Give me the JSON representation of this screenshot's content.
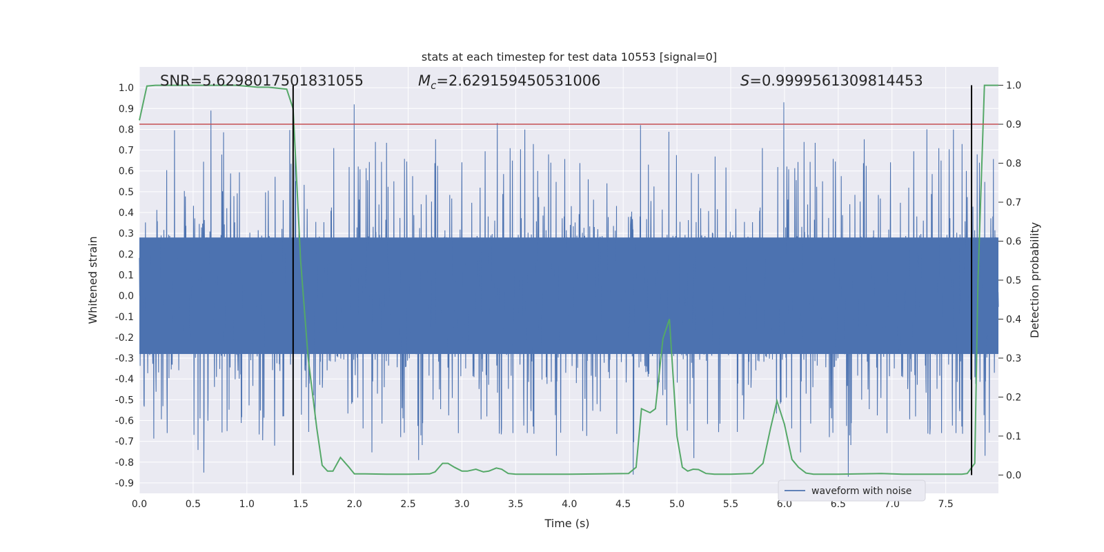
{
  "chart_data": {
    "type": "line",
    "title": "stats at each timestep for test data 10553 [signal=0]",
    "xlabel": "Time (s)",
    "ylabel": "Whitened strain",
    "y2label": "Detection probability",
    "xlim": [
      0.0,
      7.99
    ],
    "ylim": [
      -0.95,
      1.1
    ],
    "y2lim": [
      -0.047,
      1.047
    ],
    "x_ticks": [
      0.0,
      0.5,
      1.0,
      1.5,
      2.0,
      2.5,
      3.0,
      3.5,
      4.0,
      4.5,
      5.0,
      5.5,
      6.0,
      6.5,
      7.0,
      7.5
    ],
    "x_tick_labels": [
      "0.0",
      "0.5",
      "1.0",
      "1.5",
      "2.0",
      "2.5",
      "3.0",
      "3.5",
      "4.0",
      "4.5",
      "5.0",
      "5.5",
      "6.0",
      "6.5",
      "7.0",
      "7.5"
    ],
    "y_ticks": [
      1.0,
      0.9,
      0.8,
      0.7,
      0.6,
      0.5,
      0.4,
      0.3,
      0.2,
      0.1,
      0.0,
      -0.1,
      -0.2,
      -0.3,
      -0.4,
      -0.5,
      -0.6,
      -0.7,
      -0.8,
      -0.9
    ],
    "y_tick_labels": [
      "1.0",
      "0.9",
      "0.8",
      "0.7",
      "0.6",
      "0.5",
      "0.4",
      "0.3",
      "0.2",
      "0.1",
      "0.0",
      "-0.1",
      "-0.2",
      "-0.3",
      "-0.4",
      "-0.5",
      "-0.6",
      "-0.7",
      "-0.8",
      "-0.9"
    ],
    "y2_ticks": [
      1.0,
      0.9,
      0.8,
      0.7,
      0.6,
      0.5,
      0.4,
      0.3,
      0.2,
      0.1,
      0.0
    ],
    "y2_tick_labels": [
      "1.0",
      "0.9",
      "0.8",
      "0.7",
      "0.6",
      "0.5",
      "0.4",
      "0.3",
      "0.2",
      "0.1",
      "0.0"
    ],
    "grid": true,
    "legend_placement": "lower-right",
    "annotations": {
      "snr": "SNR=5.6298017501831055",
      "mc_symbol": "M",
      "mc_subscript": "c",
      "mc_value": "=2.629159450531006",
      "s_symbol": "S",
      "s_value": "=0.9999561309814453"
    },
    "threshold_y2": 0.9,
    "vlines_x": [
      1.43,
      7.74
    ],
    "waveform_series": {
      "name": "waveform with noise",
      "color": "#4c72b0",
      "core_amplitude": 0.28,
      "spike_max": [
        0.89,
        0.92,
        0.83,
        0.82,
        0.93,
        0.8
      ],
      "spike_min": [
        -0.85,
        -0.79,
        -0.86,
        -0.87
      ]
    },
    "probability_series": {
      "color": "#55a868",
      "x": [
        0.0,
        0.07,
        0.15,
        0.3,
        0.5,
        0.7,
        0.9,
        1.1,
        1.2,
        1.37,
        1.43,
        1.5,
        1.57,
        1.65,
        1.7,
        1.75,
        1.8,
        1.87,
        1.95,
        2.0,
        2.1,
        2.3,
        2.5,
        2.7,
        2.75,
        2.82,
        2.87,
        2.93,
        3.0,
        3.05,
        3.13,
        3.2,
        3.25,
        3.32,
        3.37,
        3.43,
        3.5,
        3.7,
        4.0,
        4.3,
        4.55,
        4.62,
        4.67,
        4.75,
        4.8,
        4.87,
        4.93,
        5.0,
        5.05,
        5.1,
        5.15,
        5.2,
        5.27,
        5.35,
        5.5,
        5.7,
        5.8,
        5.87,
        5.93,
        6.0,
        6.07,
        6.13,
        6.2,
        6.27,
        6.35,
        6.5,
        6.7,
        6.9,
        7.1,
        7.3,
        7.5,
        7.65,
        7.7,
        7.77,
        7.8,
        7.86,
        7.99
      ],
      "y": [
        0.91,
        0.998,
        1.0,
        1.0,
        1.0,
        1.0,
        1.0,
        0.995,
        0.995,
        0.99,
        0.94,
        0.55,
        0.3,
        0.12,
        0.025,
        0.01,
        0.01,
        0.045,
        0.02,
        0.003,
        0.003,
        0.002,
        0.002,
        0.003,
        0.008,
        0.03,
        0.03,
        0.02,
        0.01,
        0.01,
        0.015,
        0.008,
        0.01,
        0.018,
        0.015,
        0.004,
        0.002,
        0.002,
        0.002,
        0.003,
        0.004,
        0.02,
        0.17,
        0.16,
        0.17,
        0.35,
        0.4,
        0.1,
        0.02,
        0.01,
        0.015,
        0.014,
        0.004,
        0.002,
        0.002,
        0.004,
        0.03,
        0.12,
        0.19,
        0.13,
        0.04,
        0.02,
        0.005,
        0.002,
        0.002,
        0.002,
        0.003,
        0.004,
        0.002,
        0.002,
        0.002,
        0.002,
        0.004,
        0.03,
        0.5,
        1.0,
        1.0
      ]
    },
    "threshold_color": "#c44e52",
    "background_color": "#eaeaf2"
  }
}
